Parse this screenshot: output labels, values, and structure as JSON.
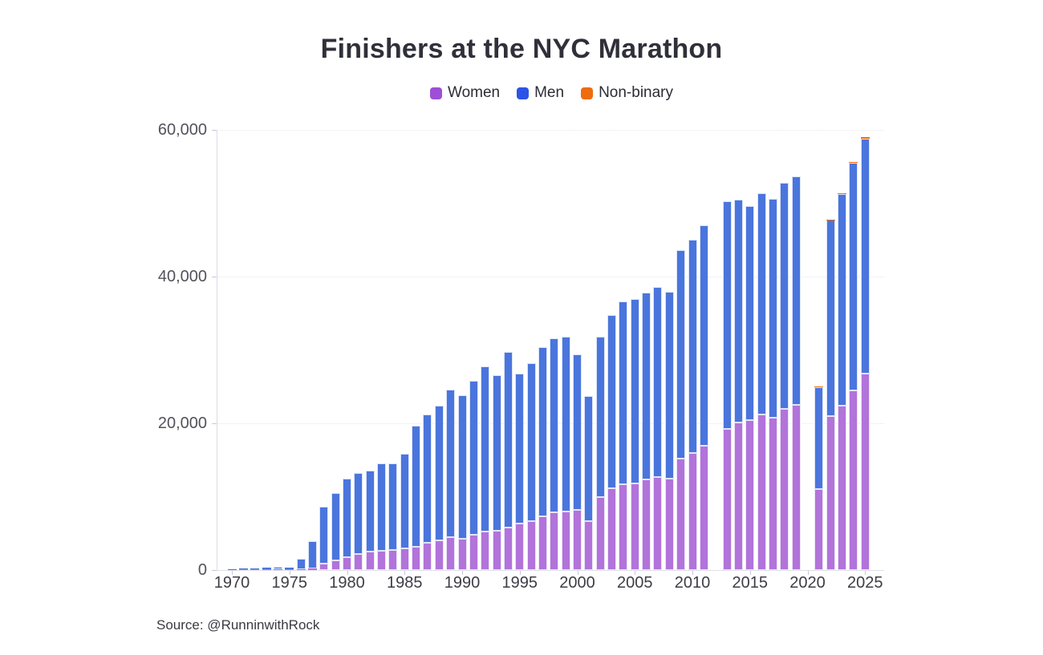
{
  "title": "Finishers at the NYC Marathon",
  "source": "Source: @RunninwithRock",
  "legend": {
    "items": [
      {
        "label": "Women",
        "color": "#9e4fd6"
      },
      {
        "label": "Men",
        "color": "#2d54e7"
      },
      {
        "label": "Non-binary",
        "color": "#ee6c0d"
      }
    ]
  },
  "chart_data": {
    "type": "bar",
    "stacked": true,
    "title": "Finishers at the NYC Marathon",
    "xlabel": "",
    "ylabel": "",
    "ylim": [
      0,
      60000
    ],
    "grid": true,
    "legend_position": "top-center",
    "gap_years": [
      2012,
      2020
    ],
    "y_ticks": [
      {
        "value": 0,
        "label": "0"
      },
      {
        "value": 20000,
        "label": "20,000"
      },
      {
        "value": 40000,
        "label": "40,000"
      },
      {
        "value": 60000,
        "label": "60,000"
      }
    ],
    "x_ticks": [
      1970,
      1975,
      1980,
      1985,
      1990,
      1995,
      2000,
      2005,
      2010,
      2015,
      2020,
      2025
    ],
    "years": [
      1970,
      1971,
      1972,
      1973,
      1974,
      1975,
      1976,
      1977,
      1978,
      1979,
      1980,
      1981,
      1982,
      1983,
      1984,
      1985,
      1986,
      1987,
      1988,
      1989,
      1990,
      1991,
      1992,
      1993,
      1994,
      1995,
      1996,
      1997,
      1998,
      1999,
      2000,
      2001,
      2002,
      2003,
      2004,
      2005,
      2006,
      2007,
      2008,
      2009,
      2010,
      2011,
      2012,
      2013,
      2014,
      2015,
      2016,
      2017,
      2018,
      2019,
      2020,
      2021,
      2022,
      2023,
      2024,
      2025
    ],
    "series": [
      {
        "name": "Women",
        "key": "women",
        "bar_color": "#b273da",
        "swatch_color": "#9e4fd6",
        "values": [
          0,
          5,
          6,
          12,
          25,
          35,
          60,
          200,
          930,
          1350,
          1800,
          2200,
          2550,
          2650,
          2750,
          2950,
          3200,
          3750,
          4100,
          4450,
          4300,
          4850,
          5200,
          5400,
          5800,
          6300,
          6700,
          7300,
          7850,
          8000,
          8200,
          6700,
          9950,
          11200,
          11700,
          11850,
          12400,
          12700,
          12500,
          15200,
          15950,
          16950,
          0,
          19200,
          20100,
          20400,
          21240,
          20800,
          21970,
          22550,
          0,
          11000,
          20950,
          22400,
          24450,
          26800
        ]
      },
      {
        "name": "Men",
        "key": "men",
        "bar_color": "#4a75dd",
        "swatch_color": "#2d54e7",
        "values": [
          55,
          159,
          181,
          275,
          389,
          304,
          1489,
          3685,
          7658,
          9127,
          10712,
          11003,
          11049,
          11896,
          11840,
          12931,
          16489,
          17494,
          18305,
          20138,
          19474,
          20947,
          22597,
          21197,
          23935,
          20454,
          21482,
          23127,
          23689,
          23786,
          21173,
          16964,
          21884,
          23529,
          24862,
          25044,
          25466,
          25907,
          25399,
          28460,
          29030,
          30050,
          0,
          31066,
          30430,
          29195,
          30148,
          29844,
          30843,
          31077,
          0,
          13967,
          26759,
          28862,
          31033,
          32000
        ]
      },
      {
        "name": "Non-binary",
        "key": "non_binary",
        "bar_color": "#f3700e",
        "swatch_color": "#ee6c0d",
        "values": [
          0,
          0,
          0,
          0,
          0,
          0,
          0,
          0,
          0,
          0,
          0,
          0,
          0,
          0,
          0,
          0,
          0,
          0,
          0,
          0,
          0,
          0,
          0,
          0,
          0,
          0,
          0,
          0,
          0,
          0,
          0,
          0,
          0,
          0,
          0,
          0,
          0,
          0,
          0,
          0,
          0,
          0,
          0,
          0,
          0,
          0,
          0,
          0,
          0,
          0,
          0,
          16,
          91,
          138,
          163,
          200
        ]
      }
    ]
  }
}
